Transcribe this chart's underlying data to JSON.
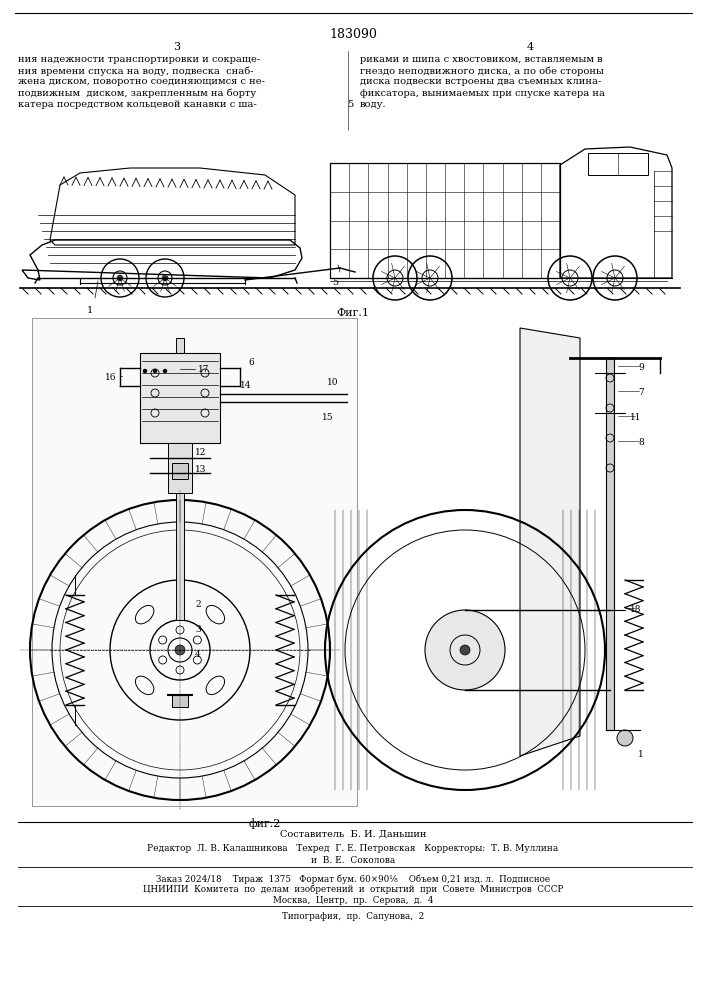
{
  "patent_number": "183090",
  "page_left": "3",
  "page_right": "4",
  "text_left_lines": [
    "ния надежности транспортировки и сокраще-",
    "ния времени спуска на воду, подвеска  снаб-",
    "жена диском, поворотно соединяющимся с не-",
    "подвижным  диском, закрепленным на борту",
    "катера посредством кольцевой канавки с ша-"
  ],
  "text_right_lines": [
    "риками и шипа с хвостовиком, вставляемым в",
    "гнездо неподвижного диска, а по обе стороны",
    "диска подвески встроены два съемных клина-",
    "фиксатора, вынимаемых при спуске катера на",
    "воду."
  ],
  "text_num": "5",
  "fig1_label": "Фиг.1",
  "fig2_label": "фиг.2",
  "footer_line1": "Составитель  Б. И. Даньшин",
  "footer_line2a": "Редактор  Л. В. Калашникова   Техред  Г. Е. Петровская   Корректоры:  Т. В. Муллина",
  "footer_line2b": "и  В. Е.  Соколова",
  "footer_line3": "Заказ 2024/18    Тираж  1375   Формат бум. 60×90¹⁄₈    Объем 0,21 изд. л.  Подписное",
  "footer_line4": "ЦНИИПИ  Комитета  по  делам  изобретений  и  открытий  при  Совете  Министров  СССР",
  "footer_line5": "Москва,  Центр,  пр.  Серова,  д.  4",
  "footer_line6": "Типография,  пр.  Сапунова,  2",
  "bg_color": "#ffffff"
}
